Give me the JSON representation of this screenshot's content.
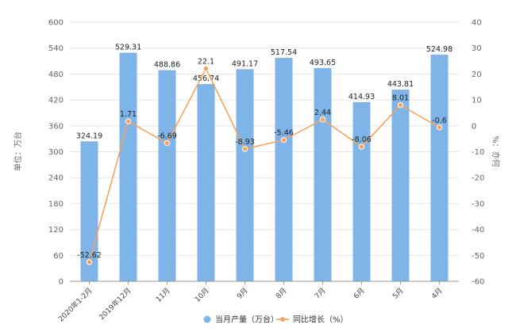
{
  "chart_data": {
    "type": "bar",
    "categories": [
      "2020年1-2月",
      "2019年12月",
      "11月",
      "10月",
      "9月",
      "8月",
      "7月",
      "6月",
      "5月",
      "4月"
    ],
    "series": [
      {
        "name": "当月产量（万台）",
        "type": "bar",
        "axis": "left",
        "color": "#7EB4E8",
        "values": [
          324.19,
          529.31,
          488.86,
          456.74,
          491.17,
          517.54,
          493.65,
          414.93,
          443.81,
          524.98
        ],
        "labels": [
          "324.19",
          "529.31",
          "488.86",
          "456.74",
          "491.17",
          "517.54",
          "493.65",
          "414.93",
          "443.81",
          "524.98"
        ]
      },
      {
        "name": "同比增长（%）",
        "type": "line",
        "axis": "right",
        "color": "#F5A25D",
        "values": [
          -52.62,
          1.71,
          -6.69,
          22.1,
          -8.93,
          -5.46,
          2.44,
          -8.06,
          8.01,
          -0.6
        ],
        "labels": [
          "-52.62",
          "1.71",
          "-6.69",
          "22.1",
          "-8.93",
          "-5.46",
          "2.44",
          "-8.06",
          "8.01",
          "-0.6"
        ]
      }
    ],
    "ylabel_left": "单位：万台",
    "ylabel_right": "%：亦何",
    "ylim_left": [
      0,
      600
    ],
    "yticks_left": [
      0,
      60,
      120,
      180,
      240,
      300,
      360,
      420,
      480,
      540,
      600
    ],
    "ylim_right": [
      -60,
      40
    ],
    "yticks_right": [
      -60,
      -50,
      -40,
      -30,
      -20,
      -10,
      0,
      10,
      20,
      30,
      40
    ],
    "grid": true,
    "legend_position": "bottom"
  }
}
